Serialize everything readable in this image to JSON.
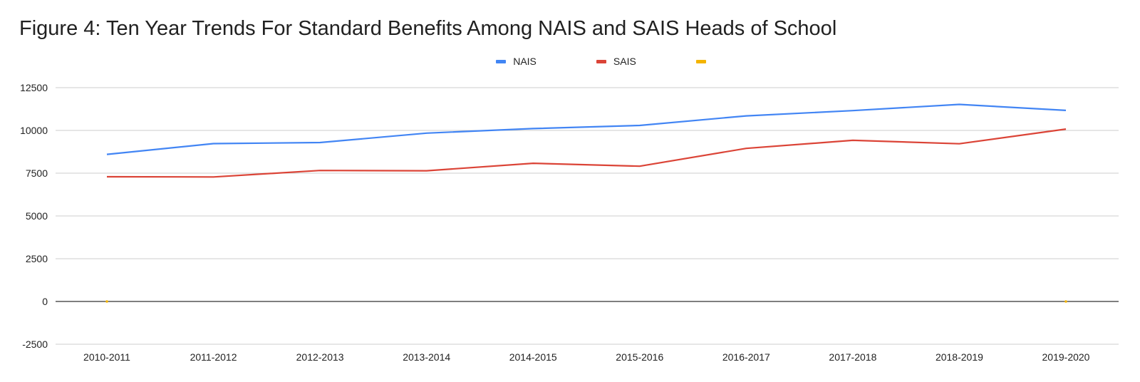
{
  "chart_data": {
    "type": "line",
    "title": "Figure 4: Ten Year Trends For Standard Benefits Among NAIS and SAIS Heads of School",
    "xlabel": "",
    "ylabel": "",
    "categories": [
      "2010-2011",
      "2011-2012",
      "2012-2013",
      "2013-2014",
      "2014-2015",
      "2015-2016",
      "2016-2017",
      "2017-2018",
      "2018-2019",
      "2019-2020"
    ],
    "ylim": [
      -2500,
      12500
    ],
    "yticks": [
      "12500",
      "10000",
      "7500",
      "5000",
      "2500",
      "0",
      "-2500"
    ],
    "grid": true,
    "legend_position": "top",
    "series": [
      {
        "name": "NAIS",
        "color": "#4285f4",
        "values": [
          8600,
          9230,
          9290,
          9840,
          10110,
          10290,
          10850,
          11160,
          11520,
          11170
        ]
      },
      {
        "name": "SAIS",
        "color": "#db4437",
        "values": [
          7290,
          7280,
          7660,
          7640,
          8080,
          7910,
          8950,
          9420,
          9220,
          10080
        ]
      },
      {
        "name": "",
        "color": "#f4b400",
        "values": [
          0,
          null,
          null,
          null,
          null,
          null,
          null,
          null,
          null,
          0
        ]
      }
    ]
  }
}
